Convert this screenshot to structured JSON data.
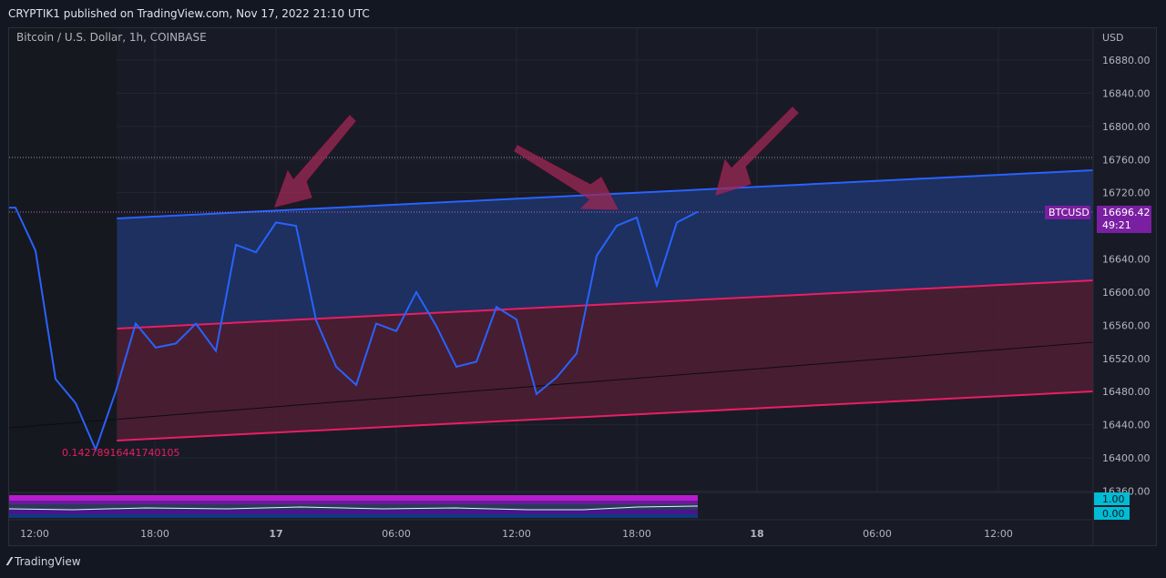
{
  "header": {
    "published": "CRYPTIK1 published on TradingView.com, Nov 17, 2022 21:10 UTC"
  },
  "symbol": {
    "title": "Bitcoin / U.S. Dollar, 1h, COINBASE"
  },
  "price_axis": {
    "currency": "USD",
    "ticks": [
      "16880.00",
      "16840.00",
      "16800.00",
      "16760.00",
      "16720.00",
      "16680.00",
      "16640.00",
      "16600.00",
      "16560.00",
      "16520.00",
      "16480.00",
      "16440.00",
      "16400.00",
      "16360.00"
    ]
  },
  "time_axis": {
    "ticks": [
      "12:00",
      "18:00",
      "17",
      "06:00",
      "12:00",
      "18:00",
      "18",
      "06:00",
      "12:00"
    ]
  },
  "price_label": {
    "ticker": "BTCUSD",
    "price": "16696.42",
    "countdown": "49:21"
  },
  "annotation": {
    "text": "0.14278916441740105"
  },
  "indicator": {
    "top_label": "1.00",
    "bottom_label": "0.00"
  },
  "footer": {
    "brand": "TradingView"
  },
  "colors": {
    "line": "#2962ff",
    "channel_red": "#e91e63",
    "arrow": "#9c2a55",
    "label_bg": "#7b1fa2",
    "indicator_label": "#00bcd4"
  },
  "chart_data": {
    "type": "line",
    "title": "Bitcoin / U.S. Dollar, 1h, COINBASE",
    "ylabel": "USD",
    "ylim": [
      16360,
      16900
    ],
    "series": [
      {
        "name": "BTCUSD",
        "x": [
          "16 10:00",
          "16 11:00",
          "16 12:00",
          "16 13:00",
          "16 14:00",
          "16 15:00",
          "16 16:00",
          "16 17:00",
          "16 18:00",
          "16 19:00",
          "16 20:00",
          "16 21:00",
          "16 22:00",
          "16 23:00",
          "17 00:00",
          "17 01:00",
          "17 02:00",
          "17 03:00",
          "17 04:00",
          "17 05:00",
          "17 06:00",
          "17 07:00",
          "17 08:00",
          "17 09:00",
          "17 10:00",
          "17 11:00",
          "17 12:00",
          "17 13:00",
          "17 14:00",
          "17 15:00",
          "17 16:00",
          "17 17:00",
          "17 18:00",
          "17 19:00",
          "17 20:00",
          "17 21:00"
        ],
        "values": [
          16702,
          16650,
          16495,
          16466,
          16410,
          16480,
          16562,
          16533,
          16538,
          16562,
          16529,
          16657,
          16648,
          16684,
          16680,
          16566,
          16510,
          16488,
          16562,
          16553,
          16600,
          16559,
          16510,
          16516,
          16582,
          16567,
          16477,
          16497,
          16526,
          16644,
          16680,
          16690,
          16608,
          16684,
          16696.42,
          16696.42
        ]
      }
    ],
    "channels": [
      {
        "name": "upper",
        "from": [
          "16 15:00",
          16686
        ],
        "to": [
          "18 17:00",
          16750
        ]
      },
      {
        "name": "middle",
        "from": [
          "16 15:00",
          16554
        ],
        "to": [
          "18 17:00",
          16616
        ]
      },
      {
        "name": "lower",
        "from": [
          "16 15:00",
          16421
        ],
        "to": [
          "18 17:00",
          16481
        ]
      }
    ]
  }
}
